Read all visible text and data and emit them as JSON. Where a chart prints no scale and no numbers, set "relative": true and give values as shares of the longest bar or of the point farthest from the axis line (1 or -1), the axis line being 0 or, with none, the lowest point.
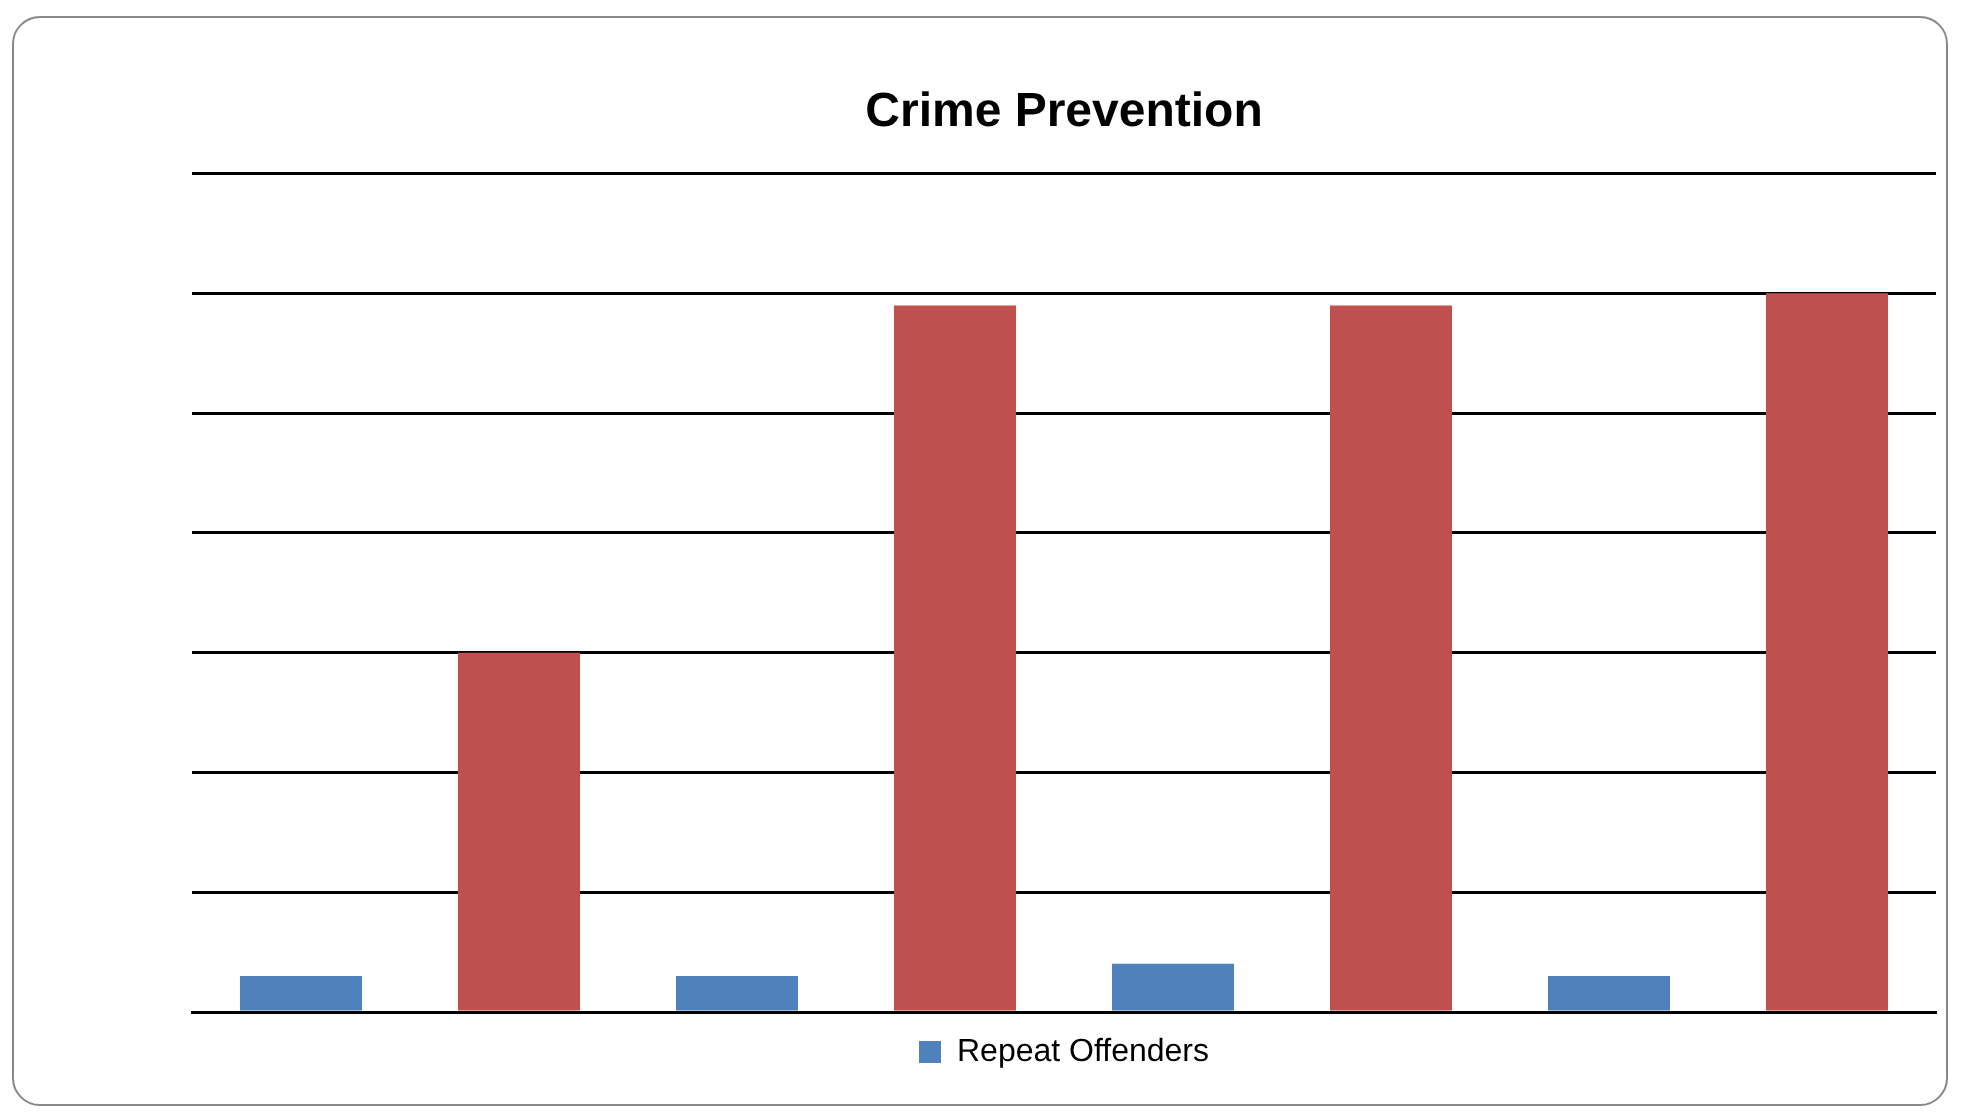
{
  "chart_data": {
    "type": "bar",
    "title": "Crime Prevention",
    "relative": true,
    "categories": [
      null,
      null,
      null,
      null
    ],
    "series": [
      {
        "name": "Repeat Offenders",
        "color": "#4f81bd",
        "values": [
          0.05,
          0.05,
          0.067,
          0.05
        ]
      },
      {
        "color": "#c0504d",
        "values": [
          0.5,
          0.983,
          0.983,
          1
        ]
      }
    ],
    "grid": "y",
    "legend": "bottom"
  }
}
